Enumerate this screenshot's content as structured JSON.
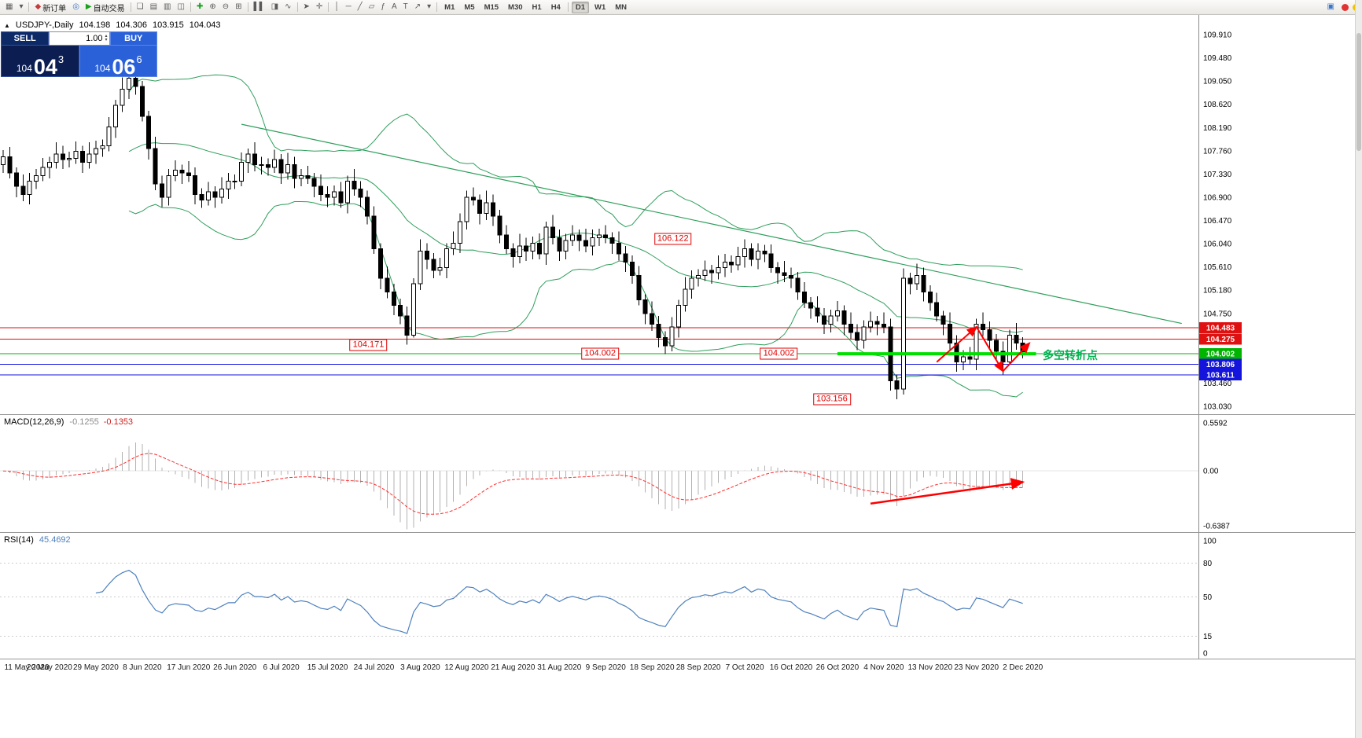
{
  "toolbar": {
    "items": [
      {
        "name": "bar-chart-window-icon",
        "glyph": "▦"
      },
      {
        "name": "chart-list-dropdown-icon",
        "glyph": "▾"
      },
      {
        "sep": true
      },
      {
        "name": "new-order-button",
        "glyph": "◆",
        "glyph_color": "#c43c3c",
        "label": "新订单"
      },
      {
        "name": "mql-community-icon",
        "glyph": "◎",
        "glyph_color": "#3c78c8"
      },
      {
        "name": "autotrading-button",
        "glyph": "▶",
        "glyph_color": "#1ba11b",
        "label": "自动交易"
      },
      {
        "sep": true
      },
      {
        "name": "cascade-windows-icon",
        "glyph": "❏"
      },
      {
        "name": "tile-horizontal-icon",
        "glyph": "▤"
      },
      {
        "name": "tile-vertical-icon",
        "glyph": "▥"
      },
      {
        "name": "arrange-windows-icon",
        "glyph": "◫"
      },
      {
        "sep": true
      },
      {
        "name": "indicators-icon",
        "glyph": "✚",
        "glyph_color": "#1ba11b"
      },
      {
        "name": "zoom-in-icon",
        "glyph": "⊕"
      },
      {
        "name": "zoom-out-icon",
        "glyph": "⊖"
      },
      {
        "name": "tile-windows-icon",
        "glyph": "⊞"
      },
      {
        "sep": true
      },
      {
        "name": "bars-mode-icon",
        "glyph": "▌▌"
      },
      {
        "name": "candlestick-mode-icon",
        "glyph": "◨"
      },
      {
        "name": "line-mode-icon",
        "glyph": "∿"
      },
      {
        "sep": true
      },
      {
        "name": "cursor-icon",
        "glyph": "➤"
      },
      {
        "name": "crosshair-icon",
        "glyph": "✛"
      },
      {
        "sep": true
      },
      {
        "name": "vertical-line-icon",
        "glyph": "│"
      },
      {
        "name": "horizontal-line-icon",
        "glyph": "─"
      },
      {
        "name": "trendline-icon",
        "glyph": "╱"
      },
      {
        "name": "channel-icon",
        "glyph": "▱"
      },
      {
        "name": "fibonacci-icon",
        "glyph": "ƒ"
      },
      {
        "name": "text-icon",
        "glyph": "A"
      },
      {
        "name": "label-icon",
        "glyph": "T"
      },
      {
        "name": "arrows-tool-icon",
        "glyph": "↗"
      },
      {
        "name": "shapes-dropdown-icon",
        "glyph": "▾"
      },
      {
        "sep": true
      }
    ],
    "timeframes": [
      "M1",
      "M5",
      "M15",
      "M30",
      "H1",
      "H4",
      "D1",
      "W1",
      "MN"
    ],
    "active_timeframe": "D1",
    "right_items": [
      {
        "name": "notifications-icon",
        "glyph": "▣",
        "glyph_color": "#3c78c8"
      }
    ],
    "status_dots": [
      {
        "name": "status-dot-red",
        "color": "#e23232"
      },
      {
        "name": "status-dot-yellow",
        "color": "#f0c400"
      }
    ]
  },
  "chart_header": {
    "collapse_icon": "▲",
    "title": "USDJPY-,Daily",
    "open": "104.198",
    "high": "104.306",
    "low": "103.915",
    "close": "104.043"
  },
  "trade_panel": {
    "sell_label": "SELL",
    "buy_label": "BUY",
    "volume": "1.00",
    "spinner_up": "▴",
    "spinner_down": "▾",
    "bid_small": "104",
    "bid_big": "04",
    "bid_sup": "3",
    "ask_small": "104",
    "ask_big": "06",
    "ask_sup": "6"
  },
  "price_axis": {
    "labels": [
      "109.910",
      "109.480",
      "109.050",
      "108.620",
      "108.190",
      "107.760",
      "107.330",
      "106.900",
      "106.470",
      "106.040",
      "105.610",
      "105.180",
      "104.750",
      "104.320",
      "103.890",
      "103.460",
      "103.030"
    ],
    "tags": [
      {
        "text": "104.483",
        "price": 104.483,
        "color": "#e01010"
      },
      {
        "text": "104.275",
        "price": 104.275,
        "color": "#e01010"
      },
      {
        "text": "104.002",
        "price": 104.002,
        "color": "#00b400"
      },
      {
        "text": "103.806",
        "price": 103.806,
        "color": "#1414dc"
      },
      {
        "text": "103.611",
        "price": 103.611,
        "color": "#1414dc"
      }
    ]
  },
  "macd": {
    "label": "MACD(12,26,9)",
    "v1": "-0.1255",
    "v2": "-0.1353",
    "axis": [
      {
        "text": "0.5592",
        "value": 0.5592
      },
      {
        "text": "0.00",
        "value": 0
      },
      {
        "text": "-0.6387",
        "value": -0.6387
      }
    ]
  },
  "rsi": {
    "label": "RSI(14)",
    "value": "45.4692",
    "axis": [
      {
        "text": "100",
        "value": 100
      },
      {
        "text": "80",
        "value": 80
      },
      {
        "text": "50",
        "value": 50
      },
      {
        "text": "15",
        "value": 15
      },
      {
        "text": "0",
        "value": 0
      }
    ],
    "levels": [
      80,
      50,
      15
    ]
  },
  "chart_data": {
    "type": "candlestick",
    "symbol": "USDJPY-",
    "timeframe": "Daily",
    "ylim": [
      103.03,
      109.91
    ],
    "x_labels": [
      "11 May 2020",
      "20 May 2020",
      "29 May 2020",
      "8 Jun 2020",
      "17 Jun 2020",
      "26 Jun 2020",
      "6 Jul 2020",
      "15 Jul 2020",
      "24 Jul 2020",
      "3 Aug 2020",
      "12 Aug 2020",
      "21 Aug 2020",
      "31 Aug 2020",
      "9 Sep 2020",
      "18 Sep 2020",
      "28 Sep 2020",
      "7 Oct 2020",
      "16 Oct 2020",
      "26 Oct 2020",
      "4 Nov 2020",
      "13 Nov 2020",
      "23 Nov 2020",
      "2 Dec 2020"
    ],
    "candles_per_label": 7,
    "first_open": 107.5,
    "closes": [
      107.65,
      107.35,
      107.1,
      106.95,
      107.2,
      107.3,
      107.45,
      107.55,
      107.7,
      107.6,
      107.62,
      107.75,
      107.55,
      107.7,
      107.8,
      107.85,
      108.2,
      108.6,
      108.9,
      109.1,
      108.95,
      108.4,
      107.8,
      107.15,
      106.9,
      107.3,
      107.4,
      107.35,
      107.3,
      106.95,
      106.85,
      107.0,
      106.9,
      107.05,
      107.2,
      107.2,
      107.55,
      107.7,
      107.5,
      107.5,
      107.45,
      107.6,
      107.35,
      107.5,
      107.25,
      107.3,
      107.25,
      107.1,
      106.95,
      106.9,
      107.0,
      106.8,
      107.2,
      107.05,
      106.9,
      106.55,
      105.95,
      105.4,
      105.15,
      104.9,
      104.7,
      104.35,
      105.3,
      105.9,
      105.75,
      105.55,
      105.6,
      105.95,
      106.05,
      106.45,
      106.9,
      106.85,
      106.6,
      106.8,
      106.55,
      106.2,
      105.95,
      105.8,
      106.0,
      105.9,
      106.05,
      105.85,
      106.35,
      106.15,
      105.9,
      106.1,
      106.2,
      106.1,
      106.0,
      106.15,
      106.2,
      106.15,
      106.05,
      105.85,
      105.7,
      105.45,
      105.0,
      104.75,
      104.55,
      104.3,
      104.15,
      104.5,
      104.9,
      105.2,
      105.4,
      105.45,
      105.55,
      105.5,
      105.6,
      105.7,
      105.65,
      105.8,
      105.95,
      105.75,
      105.9,
      105.85,
      105.6,
      105.5,
      105.45,
      105.4,
      105.15,
      104.95,
      104.85,
      104.7,
      104.55,
      104.7,
      104.8,
      104.55,
      104.4,
      104.25,
      104.5,
      104.6,
      104.55,
      104.5,
      103.5,
      103.35,
      105.4,
      105.3,
      105.45,
      105.15,
      104.95,
      104.7,
      104.55,
      104.2,
      103.85,
      103.95,
      103.9,
      104.55,
      104.45,
      104.25,
      104.05,
      103.85,
      104.35,
      104.2,
      104.04
    ],
    "highs": [
      107.77,
      107.83,
      107.45,
      107.32,
      107.35,
      107.42,
      107.63,
      107.65,
      107.92,
      107.85,
      107.74,
      107.93,
      107.85,
      107.92,
      107.95,
      107.97,
      108.38,
      108.7,
      109.12,
      109.27,
      109.22,
      109.05,
      108.5,
      108.02,
      107.3,
      107.42,
      107.58,
      107.5,
      107.57,
      107.45,
      107.07,
      107.18,
      107.1,
      107.27,
      107.35,
      107.32,
      107.73,
      107.8,
      107.92,
      107.65,
      107.62,
      107.78,
      107.7,
      107.72,
      107.65,
      107.42,
      107.48,
      107.35,
      107.32,
      107.1,
      107.12,
      107.18,
      107.3,
      107.42,
      107.2,
      107.02,
      106.73,
      106.05,
      105.62,
      105.3,
      105.02,
      104.88,
      105.4,
      106.12,
      106.05,
      105.87,
      105.78,
      106.05,
      106.27,
      106.6,
      107.02,
      107.08,
      106.95,
      107.02,
      106.95,
      106.67,
      106.38,
      106.05,
      106.22,
      106.15,
      106.17,
      106.23,
      106.45,
      106.57,
      106.3,
      106.22,
      106.38,
      106.3,
      106.32,
      106.3,
      106.32,
      106.38,
      106.25,
      106.27,
      106.0,
      105.82,
      105.63,
      105.1,
      104.97,
      104.7,
      104.42,
      104.68,
      105.0,
      105.42,
      105.55,
      105.57,
      105.73,
      105.65,
      105.82,
      105.85,
      105.82,
      105.98,
      106.12,
      106.05,
      106.05,
      106.02,
      106.03,
      105.7,
      105.72,
      105.6,
      105.52,
      105.33,
      105.05,
      105.07,
      104.85,
      104.82,
      104.98,
      104.9,
      104.77,
      104.55,
      104.62,
      104.78,
      104.7,
      104.77,
      104.65,
      103.62,
      105.58,
      105.5,
      105.67,
      105.6,
      105.27,
      105.13,
      104.8,
      104.77,
      104.35,
      104.07,
      104.13,
      104.65,
      104.77,
      104.6,
      104.37,
      104.23,
      104.45,
      104.57,
      104.31
    ],
    "lows": [
      107.35,
      107.25,
      106.9,
      106.83,
      106.77,
      107.05,
      107.2,
      107.25,
      107.43,
      107.42,
      107.45,
      107.52,
      107.35,
      107.43,
      107.52,
      107.65,
      107.75,
      108.0,
      108.48,
      108.72,
      108.8,
      108.3,
      107.6,
      107.03,
      106.72,
      106.75,
      107.2,
      107.15,
      107.18,
      106.77,
      106.7,
      106.75,
      106.7,
      106.78,
      106.87,
      107.05,
      107.1,
      107.35,
      107.38,
      107.32,
      107.3,
      107.35,
      107.15,
      107.23,
      107.07,
      107.1,
      107.15,
      106.9,
      106.83,
      106.72,
      106.75,
      106.7,
      106.6,
      106.93,
      106.72,
      106.4,
      105.85,
      105.2,
      105.03,
      104.72,
      104.55,
      104.17,
      104.3,
      105.18,
      105.57,
      105.4,
      105.45,
      105.4,
      105.83,
      105.87,
      106.3,
      106.75,
      106.4,
      106.48,
      106.37,
      106.05,
      105.85,
      105.6,
      105.68,
      105.72,
      105.75,
      105.75,
      105.65,
      106.03,
      105.72,
      105.75,
      106.0,
      105.9,
      105.88,
      105.82,
      106.0,
      106.05,
      105.85,
      105.73,
      105.52,
      105.3,
      104.9,
      104.55,
      104.43,
      104.12,
      104.0,
      104.05,
      104.3,
      104.78,
      105.02,
      105.25,
      105.35,
      105.3,
      105.38,
      105.42,
      105.5,
      105.55,
      105.6,
      105.63,
      105.57,
      105.7,
      105.5,
      105.3,
      105.33,
      105.22,
      105.0,
      104.85,
      104.65,
      104.58,
      104.37,
      104.4,
      104.6,
      104.35,
      104.28,
      104.07,
      104.1,
      104.4,
      104.35,
      104.38,
      103.32,
      103.16,
      103.25,
      105.1,
      105.18,
      104.97,
      104.8,
      104.6,
      104.35,
      104.08,
      103.67,
      103.7,
      103.8,
      103.7,
      104.33,
      104.07,
      103.9,
      103.62,
      103.8,
      104.08,
      103.92
    ],
    "overlays": {
      "bollinger": {
        "period": 20,
        "deviation": 2,
        "color": "#2e9e5b"
      },
      "trendline": {
        "from_index": 36,
        "from_price": 108.25,
        "to_index": 140,
        "to_price": 105.55,
        "extend_to_index": 178
      },
      "hlines": [
        {
          "price": 104.483,
          "color": "#e01010",
          "width": 1
        },
        {
          "price": 104.275,
          "color": "#e01010",
          "width": 1
        },
        {
          "price": 104.002,
          "color": "#00b400",
          "width": 1
        },
        {
          "price": 103.806,
          "color": "#1414dc",
          "width": 1
        },
        {
          "price": 103.611,
          "color": "#1414dc",
          "width": 1
        }
      ],
      "green_segment": {
        "price": 104.002,
        "from_index": 126,
        "to_index": 156,
        "color": "#00e000",
        "width": 4
      },
      "callouts": [
        {
          "text": "104.171",
          "index": 58,
          "price": 104.171
        },
        {
          "text": "106.122",
          "index": 104,
          "price": 106.122
        },
        {
          "text": "104.002",
          "index": 93,
          "price": 104.002
        },
        {
          "text": "104.002",
          "index": 120,
          "price": 104.002
        },
        {
          "text": "103.156",
          "index": 128,
          "price": 103.156
        }
      ],
      "note": {
        "text": "多空转折点",
        "index": 157,
        "price": 103.97,
        "color": "#00b050"
      },
      "arrows": [
        {
          "from": [
            141,
            103.85
          ],
          "to": [
            147,
            104.5
          ]
        },
        {
          "from": [
            147,
            104.5
          ],
          "to": [
            151,
            103.68
          ]
        },
        {
          "from": [
            151,
            103.68
          ],
          "to": [
            155,
            104.2
          ]
        }
      ]
    },
    "macd_panel": {
      "params": [
        12,
        26,
        9
      ],
      "ylim": [
        -0.6387,
        0.5592
      ],
      "arrow": {
        "from_index": 131,
        "from_value": -0.38,
        "to_index": 154,
        "to_value": -0.13
      }
    },
    "rsi_panel": {
      "period": 14,
      "ylim": [
        0,
        100
      ]
    }
  }
}
